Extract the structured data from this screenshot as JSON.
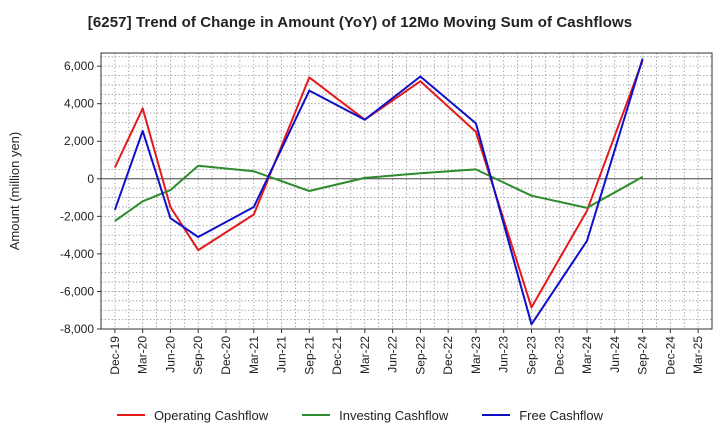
{
  "chart_data": {
    "type": "line",
    "title": "[6257]  Trend of Change in Amount (YoY) of 12Mo Moving Sum of Cashflows",
    "xlabel": "",
    "ylabel": "Amount (million yen)",
    "ylim": [
      -8000,
      6700
    ],
    "yticks": [
      -8000,
      -6000,
      -4000,
      -2000,
      0,
      2000,
      4000,
      6000
    ],
    "ytick_labels": [
      "-8,000",
      "-6,000",
      "-4,000",
      "-2,000",
      "0",
      "2,000",
      "4,000",
      "6,000"
    ],
    "categories": [
      "Dec-19",
      "Mar-20",
      "Jun-20",
      "Sep-20",
      "Dec-20",
      "Mar-21",
      "Jun-21",
      "Sep-21",
      "Dec-21",
      "Mar-22",
      "Jun-22",
      "Sep-22",
      "Dec-22",
      "Mar-23",
      "Jun-23",
      "Sep-23",
      "Dec-23",
      "Mar-24",
      "Jun-24",
      "Sep-24",
      "Dec-24",
      "Mar-25"
    ],
    "grid": true,
    "legend_position": "bottom",
    "series": [
      {
        "name": "Operating Cashflow",
        "color": "#e31a1c",
        "points": [
          [
            0,
            600
          ],
          [
            1,
            3750
          ],
          [
            2,
            -1500
          ],
          [
            3,
            -3800
          ],
          [
            5,
            -1900
          ],
          [
            7,
            5400
          ],
          [
            9,
            3150
          ],
          [
            11,
            5200
          ],
          [
            13,
            2500
          ],
          [
            15,
            -6850
          ],
          [
            17,
            -1700
          ],
          [
            19,
            6300
          ]
        ]
      },
      {
        "name": "Investing Cashflow",
        "color": "#2e8b2e",
        "points": [
          [
            0,
            -2250
          ],
          [
            1,
            -1200
          ],
          [
            2,
            -600
          ],
          [
            3,
            700
          ],
          [
            5,
            400
          ],
          [
            7,
            -650
          ],
          [
            9,
            50
          ],
          [
            11,
            300
          ],
          [
            13,
            500
          ],
          [
            15,
            -900
          ],
          [
            17,
            -1550
          ],
          [
            19,
            100
          ]
        ]
      },
      {
        "name": "Free Cashflow",
        "color": "#1010c8",
        "points": [
          [
            0,
            -1650
          ],
          [
            1,
            2550
          ],
          [
            2,
            -2100
          ],
          [
            3,
            -3100
          ],
          [
            5,
            -1500
          ],
          [
            7,
            4700
          ],
          [
            9,
            3150
          ],
          [
            11,
            5450
          ],
          [
            13,
            2950
          ],
          [
            15,
            -7750
          ],
          [
            17,
            -3300
          ],
          [
            19,
            6400
          ]
        ]
      }
    ]
  }
}
